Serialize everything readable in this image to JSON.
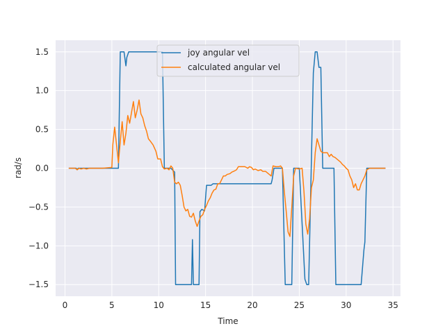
{
  "chart_data": {
    "type": "line",
    "title": "",
    "xlabel": "Time",
    "ylabel": "rad/s",
    "xlim": [
      -1.0,
      35.8
    ],
    "ylim": [
      -1.65,
      1.65
    ],
    "xticks": [
      0,
      5,
      10,
      15,
      20,
      25,
      30,
      35
    ],
    "yticks": [
      -1.5,
      -1.0,
      -0.5,
      0.0,
      0.5,
      1.0,
      1.5
    ],
    "xtick_labels": [
      "0",
      "5",
      "10",
      "15",
      "20",
      "25",
      "30",
      "35"
    ],
    "ytick_labels": [
      "−1.5",
      "−1.0",
      "−0.5",
      "0.0",
      "0.5",
      "1.0",
      "1.5"
    ],
    "grid": true,
    "legend_position": "top-center",
    "series": [
      {
        "name": "joy angular vel",
        "color": "#1f77b4",
        "points": [
          [
            0.4,
            0
          ],
          [
            1.2,
            0
          ],
          [
            1.3,
            -0.02
          ],
          [
            1.4,
            0
          ],
          [
            4.5,
            0
          ],
          [
            5.7,
            0
          ],
          [
            5.9,
            1.5
          ],
          [
            6.3,
            1.5
          ],
          [
            6.5,
            1.32
          ],
          [
            6.6,
            1.43
          ],
          [
            6.8,
            1.5
          ],
          [
            10.4,
            1.5
          ],
          [
            10.6,
            0
          ],
          [
            11.3,
            0
          ],
          [
            11.7,
            -0.05
          ],
          [
            11.8,
            -1.5
          ],
          [
            13.5,
            -1.5
          ],
          [
            13.6,
            -0.92
          ],
          [
            13.7,
            -1.5
          ],
          [
            14.3,
            -1.5
          ],
          [
            14.4,
            -0.56
          ],
          [
            14.6,
            -0.53
          ],
          [
            14.9,
            -0.55
          ],
          [
            15.1,
            -0.22
          ],
          [
            15.6,
            -0.22
          ],
          [
            15.8,
            -0.2
          ],
          [
            16.0,
            -0.2
          ],
          [
            16.2,
            -0.2
          ],
          [
            22.0,
            -0.2
          ],
          [
            22.1,
            -0.15
          ],
          [
            22.3,
            0
          ],
          [
            23.2,
            0
          ],
          [
            23.5,
            -1.5
          ],
          [
            24.2,
            -1.5
          ],
          [
            24.4,
            0
          ],
          [
            25.0,
            0
          ],
          [
            25.6,
            -1.43
          ],
          [
            25.8,
            -1.5
          ],
          [
            26.0,
            -1.5
          ],
          [
            26.5,
            1.23
          ],
          [
            26.7,
            1.5
          ],
          [
            26.9,
            1.5
          ],
          [
            27.1,
            1.3
          ],
          [
            27.3,
            1.3
          ],
          [
            27.5,
            0
          ],
          [
            28.7,
            0
          ],
          [
            28.9,
            -1.5
          ],
          [
            31.6,
            -1.5
          ],
          [
            31.9,
            -1.05
          ],
          [
            32.0,
            -0.95
          ],
          [
            32.2,
            0
          ],
          [
            34.2,
            0
          ]
        ]
      },
      {
        "name": "calculated angular vel",
        "color": "#ff7f0e",
        "points": [
          [
            0.4,
            0
          ],
          [
            1.1,
            0
          ],
          [
            1.3,
            -0.02
          ],
          [
            1.5,
            0
          ],
          [
            1.7,
            -0.01
          ],
          [
            2.0,
            0
          ],
          [
            2.3,
            -0.01
          ],
          [
            2.6,
            0
          ],
          [
            3.0,
            0
          ],
          [
            4.0,
            0
          ],
          [
            5.0,
            0.01
          ],
          [
            5.1,
            0.3
          ],
          [
            5.3,
            0.53
          ],
          [
            5.5,
            0.3
          ],
          [
            5.7,
            0.07
          ],
          [
            5.9,
            0.35
          ],
          [
            6.1,
            0.6
          ],
          [
            6.3,
            0.3
          ],
          [
            6.5,
            0.45
          ],
          [
            6.7,
            0.68
          ],
          [
            6.9,
            0.58
          ],
          [
            7.1,
            0.72
          ],
          [
            7.3,
            0.86
          ],
          [
            7.5,
            0.65
          ],
          [
            7.7,
            0.75
          ],
          [
            7.9,
            0.88
          ],
          [
            8.1,
            0.7
          ],
          [
            8.3,
            0.65
          ],
          [
            8.5,
            0.55
          ],
          [
            8.7,
            0.48
          ],
          [
            8.9,
            0.38
          ],
          [
            9.1,
            0.35
          ],
          [
            9.4,
            0.3
          ],
          [
            9.7,
            0.22
          ],
          [
            9.9,
            0.12
          ],
          [
            10.2,
            0.12
          ],
          [
            10.4,
            0.02
          ],
          [
            10.6,
            -0.01
          ],
          [
            10.9,
            0.0
          ],
          [
            11.1,
            -0.02
          ],
          [
            11.3,
            0.03
          ],
          [
            11.5,
            0.0
          ],
          [
            11.7,
            -0.18
          ],
          [
            11.9,
            -0.2
          ],
          [
            12.1,
            -0.18
          ],
          [
            12.3,
            -0.22
          ],
          [
            12.5,
            -0.35
          ],
          [
            12.7,
            -0.5
          ],
          [
            12.9,
            -0.55
          ],
          [
            13.1,
            -0.53
          ],
          [
            13.3,
            -0.62
          ],
          [
            13.5,
            -0.63
          ],
          [
            13.7,
            -0.58
          ],
          [
            13.9,
            -0.68
          ],
          [
            14.1,
            -0.75
          ],
          [
            14.3,
            -0.68
          ],
          [
            14.5,
            -0.62
          ],
          [
            14.7,
            -0.6
          ],
          [
            14.9,
            -0.53
          ],
          [
            15.1,
            -0.48
          ],
          [
            15.3,
            -0.42
          ],
          [
            15.5,
            -0.38
          ],
          [
            15.7,
            -0.32
          ],
          [
            15.9,
            -0.28
          ],
          [
            16.1,
            -0.27
          ],
          [
            16.3,
            -0.2
          ],
          [
            16.5,
            -0.2
          ],
          [
            16.7,
            -0.15
          ],
          [
            16.9,
            -0.1
          ],
          [
            17.1,
            -0.1
          ],
          [
            17.3,
            -0.08
          ],
          [
            17.6,
            -0.07
          ],
          [
            17.8,
            -0.05
          ],
          [
            18.0,
            -0.04
          ],
          [
            18.3,
            -0.02
          ],
          [
            18.5,
            0.02
          ],
          [
            18.8,
            0.02
          ],
          [
            19.2,
            0.02
          ],
          [
            19.5,
            0.0
          ],
          [
            19.7,
            0.02
          ],
          [
            19.9,
            0.01
          ],
          [
            20.1,
            -0.02
          ],
          [
            20.3,
            -0.01
          ],
          [
            20.6,
            -0.03
          ],
          [
            20.9,
            -0.02
          ],
          [
            21.1,
            -0.04
          ],
          [
            21.4,
            -0.04
          ],
          [
            21.6,
            -0.06
          ],
          [
            21.8,
            -0.08
          ],
          [
            22.0,
            -0.1
          ],
          [
            22.2,
            0.03
          ],
          [
            22.5,
            0.02
          ],
          [
            22.8,
            0.02
          ],
          [
            23.0,
            0.03
          ],
          [
            23.2,
            0.0
          ],
          [
            23.4,
            -0.3
          ],
          [
            23.6,
            -0.55
          ],
          [
            23.8,
            -0.82
          ],
          [
            24.0,
            -0.88
          ],
          [
            24.2,
            -0.5
          ],
          [
            24.4,
            -0.1
          ],
          [
            24.6,
            0.0
          ],
          [
            25.0,
            -0.01
          ],
          [
            25.3,
            0.0
          ],
          [
            25.5,
            -0.3
          ],
          [
            25.7,
            -0.72
          ],
          [
            25.9,
            -0.85
          ],
          [
            26.1,
            -0.65
          ],
          [
            26.3,
            -0.25
          ],
          [
            26.5,
            -0.15
          ],
          [
            26.7,
            0.2
          ],
          [
            26.9,
            0.38
          ],
          [
            27.1,
            0.3
          ],
          [
            27.3,
            0.22
          ],
          [
            27.5,
            0.2
          ],
          [
            27.8,
            0.2
          ],
          [
            28.0,
            0.2
          ],
          [
            28.2,
            0.15
          ],
          [
            28.4,
            0.18
          ],
          [
            28.6,
            0.15
          ],
          [
            28.8,
            0.14
          ],
          [
            29.0,
            0.12
          ],
          [
            29.2,
            0.1
          ],
          [
            29.4,
            0.08
          ],
          [
            29.6,
            0.05
          ],
          [
            29.8,
            0.03
          ],
          [
            30.0,
            0.0
          ],
          [
            30.2,
            -0.02
          ],
          [
            30.4,
            -0.1
          ],
          [
            30.6,
            -0.15
          ],
          [
            30.8,
            -0.25
          ],
          [
            31.0,
            -0.2
          ],
          [
            31.2,
            -0.28
          ],
          [
            31.4,
            -0.28
          ],
          [
            31.6,
            -0.2
          ],
          [
            31.8,
            -0.15
          ],
          [
            32.0,
            -0.1
          ],
          [
            32.2,
            -0.02
          ],
          [
            32.5,
            0.0
          ],
          [
            34.2,
            0.0
          ]
        ]
      }
    ]
  }
}
